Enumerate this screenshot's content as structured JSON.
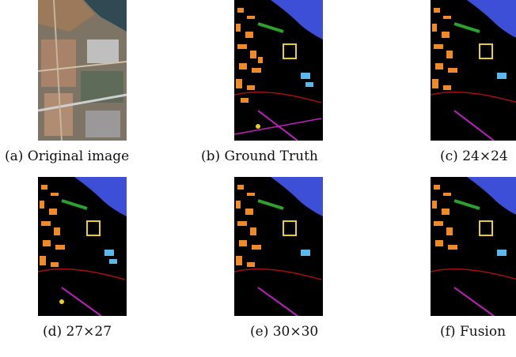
{
  "figure": {
    "panels": [
      {
        "id": "a",
        "caption": "(a) Original image",
        "kind": "photo"
      },
      {
        "id": "b",
        "caption": "(b) Ground Truth",
        "kind": "classmap"
      },
      {
        "id": "c",
        "caption": "(c) 24×24",
        "kind": "classmap"
      },
      {
        "id": "d",
        "caption": "(d) 27×27",
        "kind": "classmap"
      },
      {
        "id": "e",
        "caption": "(e) 30×30",
        "kind": "classmap"
      },
      {
        "id": "f",
        "caption": "(f) Fusion",
        "kind": "classmap"
      }
    ],
    "colors": {
      "background": "#000000",
      "water": "#3d4fd6",
      "buildings": "#f08a24",
      "roads": "#c020c0",
      "vegetation": "#2ea02e",
      "shadow": "#d8d8d8",
      "pools": "#5bb8e8",
      "yellow_region": "#e8d020",
      "red_streets": "#a01010"
    }
  }
}
